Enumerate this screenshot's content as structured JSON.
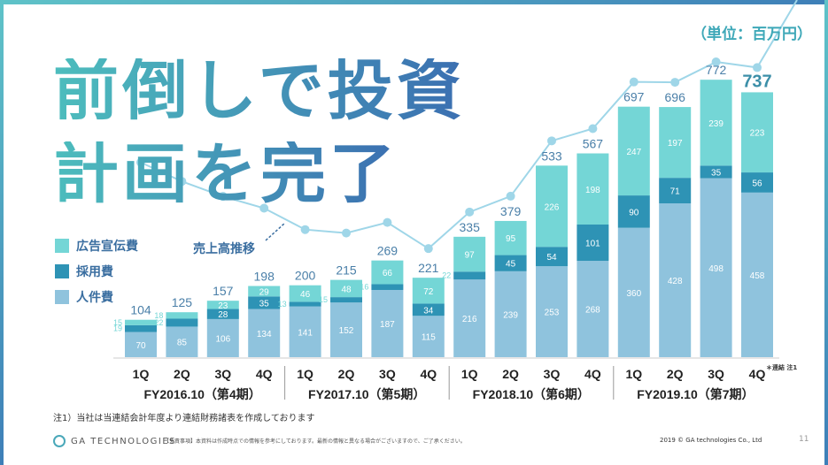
{
  "title_line1": "前倒しで投資",
  "title_line2": "計画を完了",
  "unit_label": "（単位：百万円）",
  "legend": [
    {
      "label": "広告宣伝費",
      "color": "#74d6d6"
    },
    {
      "label": "採用費",
      "color": "#2e93b5"
    },
    {
      "label": "人件費",
      "color": "#8fc3dd"
    }
  ],
  "trend_label": "売上高推移",
  "consolidated_note": "＊連結 注1",
  "footnote": "注1）当社は当連結会計年度より連結財務諸表を作成しております",
  "logo_text": "GA TECHNOLOGIES",
  "disclaimer": "【免責事項】本資料は作成時点での情報を参考にしております。最新の情報と異なる場合がございますので、ご了承ください。",
  "copyright": "2019 © GA technologies Co., Ltd",
  "page_number": "11",
  "colors": {
    "ad": "#74d6d6",
    "recruit": "#2e93b5",
    "personnel": "#8fc3dd",
    "total_label": "#4a7fa8",
    "trend": "#9fd6e8"
  },
  "chart_data": {
    "type": "bar",
    "stacked": true,
    "categories": [
      "1Q",
      "2Q",
      "3Q",
      "4Q",
      "1Q",
      "2Q",
      "3Q",
      "4Q",
      "1Q",
      "2Q",
      "3Q",
      "4Q",
      "1Q",
      "2Q",
      "3Q",
      "4Q"
    ],
    "groups": [
      {
        "label": "FY2016.10（第4期）",
        "start": 0,
        "end": 3
      },
      {
        "label": "FY2017.10（第5期）",
        "start": 4,
        "end": 7
      },
      {
        "label": "FY2018.10（第6期）",
        "start": 8,
        "end": 11
      },
      {
        "label": "FY2019.10（第7期）",
        "start": 12,
        "end": 15
      }
    ],
    "series": [
      {
        "name": "人件費",
        "values": [
          70,
          85,
          106,
          134,
          141,
          152,
          187,
          115,
          216,
          239,
          253,
          268,
          360,
          428,
          498,
          458
        ]
      },
      {
        "name": "採用費",
        "values": [
          19,
          22,
          28,
          35,
          13,
          15,
          16,
          34,
          22,
          45,
          54,
          101,
          90,
          71,
          35,
          56
        ]
      },
      {
        "name": "広告宣伝費",
        "values": [
          15,
          18,
          23,
          29,
          46,
          48,
          66,
          72,
          97,
          95,
          226,
          198,
          247,
          197,
          239,
          223
        ]
      }
    ],
    "totals": [
      104,
      125,
      157,
      198,
      200,
      215,
      269,
      221,
      335,
      379,
      533,
      567,
      697,
      696,
      772,
      737
    ],
    "highlight_index": 15,
    "trend_line": {
      "name": "売上高推移"
    },
    "grid": false
  }
}
